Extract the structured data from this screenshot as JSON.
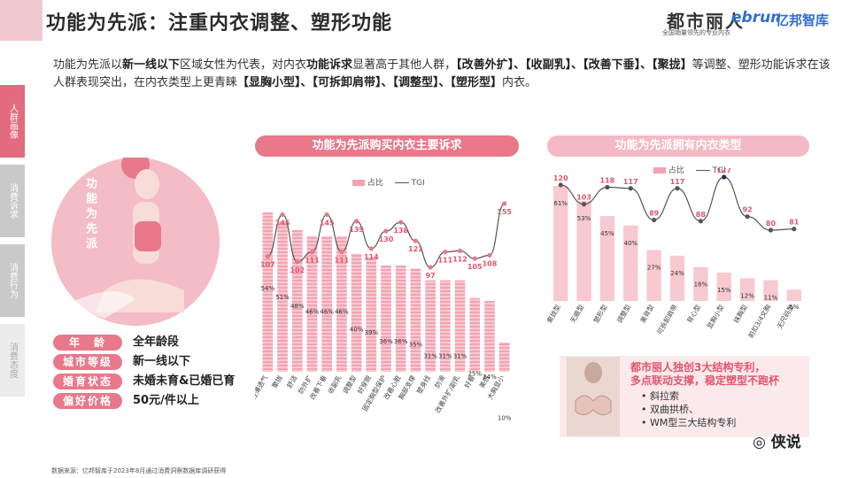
{
  "header": {
    "title": "功能为先派：注重内衣调整、塑形功能",
    "logo_dsl": "都市丽人",
    "logo_dsl_sub": "全国销量领先的专业内衣",
    "logo_ebrun": "ebrun",
    "logo_yb": "亿邦智库"
  },
  "intro": {
    "p1": "功能为先派以",
    "b1": "新一线以下",
    "p2": "区域女性为代表，对内衣",
    "b2": "功能诉求",
    "p3": "显著高于其他人群，",
    "b3": "【改善外扩】、【收副乳】、【改善下垂】、【聚拢】",
    "p4": "等调整、塑形功能诉求在该人群表现突出，在内衣类型上更青睐",
    "b4": "【显胸小型】、【可拆卸肩带】、【调整型】、【塑形型】",
    "p5": "内衣。"
  },
  "sidebar": {
    "tabs": [
      "人群画像",
      "消费诉求",
      "消费行为",
      "消费态度"
    ]
  },
  "profile": {
    "label": "功能为先派",
    "tags": [
      {
        "key": "年　龄",
        "value": "全年龄段"
      },
      {
        "key": "城市等级",
        "value": "新一线以下"
      },
      {
        "key": "婚育状态",
        "value": "未婚未育&已婚已育"
      },
      {
        "key": "偏好价格",
        "value": "50元/件以上"
      }
    ]
  },
  "colors": {
    "accent": "#e8788a",
    "bar_light": "#f8c9d1",
    "bar_stripe": "#f2a3b1",
    "line": "#555555",
    "peak_point": "#2b2b4f"
  },
  "chart_data": [
    {
      "type": "bar",
      "title": "功能为先派购买内衣主要诉求",
      "legend": [
        "占比",
        "TGI"
      ],
      "categories": [
        "轻薄透气",
        "聚拢",
        "舒适",
        "防外扩",
        "改善下垂",
        "收副乳",
        "调整型",
        "好穿脱",
        "固定胸型保护",
        "改善心脏",
        "胸部支撑",
        "塑身线",
        "防滑",
        "改善外扩/副乳",
        "好看",
        "美感",
        "大胸显小"
      ],
      "category_labels": [
        "轻薄透气",
        "聚拢",
        "舒适",
        "防外扩",
        "改善下垂",
        "收副乳",
        "调整型",
        "好穿脱",
        "固定胸型保护",
        "改善心脏",
        "胸部支撑",
        "塑身线",
        "防滑",
        "改善外扩/副乳",
        "好看",
        "美感",
        "大胸显小"
      ],
      "series": [
        {
          "name": "占比",
          "values": [
            54,
            51,
            48,
            46,
            46,
            46,
            40,
            39,
            36,
            36,
            35,
            31,
            31,
            31,
            25,
            24,
            10
          ]
        },
        {
          "name": "TGI",
          "values": [
            107,
            145,
            102,
            111,
            145,
            111,
            139,
            114,
            130,
            138,
            121,
            97,
            111,
            112,
            105,
            108,
            155
          ]
        }
      ]
    },
    {
      "type": "bar",
      "title": "功能为先派拥有内衣类型",
      "legend": [
        "占比",
        "TGI"
      ],
      "categories": [
        "聚拢型",
        "无痕型",
        "塑形型",
        "调整型",
        "美背型",
        "可拆卸肩带",
        "背心型",
        "显胸小型",
        "抹胸型",
        "前扣3/4文胸",
        "无尺码型"
      ],
      "series": [
        {
          "name": "占比",
          "values": [
            61,
            53,
            45,
            40,
            27,
            24,
            18,
            15,
            12,
            11,
            6
          ]
        },
        {
          "name": "TGI",
          "values": [
            120,
            103,
            118,
            117,
            89,
            117,
            88,
            127,
            92,
            80,
            81
          ]
        }
      ]
    }
  ],
  "callout": {
    "title_line1": "都市丽人独创3大结构专利，",
    "title_line2": "多点联动支撑，稳定塑型不跑杯",
    "items": [
      "斜拉索",
      "双曲拱桥、",
      "WM型三大结构专利"
    ]
  },
  "footer": {
    "source": "数据来源：亿邦智库于2023年8月通过消费洞察数据库调研获得",
    "watermark": "侠说"
  }
}
